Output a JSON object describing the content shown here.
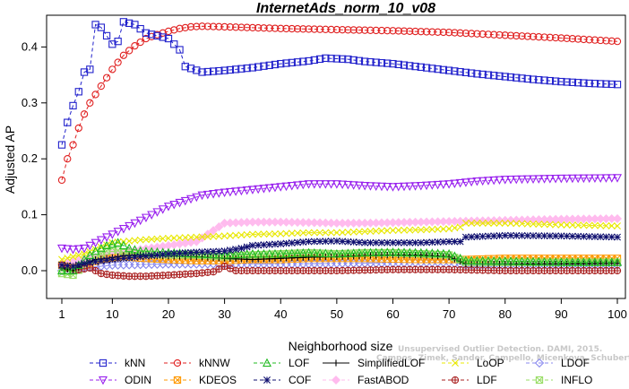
{
  "chart_data": {
    "type": "line",
    "title": "InternetAds_norm_10_v08",
    "xlabel": "Neighborhood size",
    "ylabel": "Adjusted AP",
    "xlim": [
      1,
      100
    ],
    "ylim": [
      -0.045,
      0.45
    ],
    "x_ticks": [
      1,
      10,
      20,
      30,
      40,
      50,
      60,
      70,
      80,
      90,
      100
    ],
    "y_ticks": [
      0.0,
      0.1,
      0.2,
      0.3,
      0.4
    ],
    "y_tick_labels": [
      "0.0",
      "0.1",
      "0.2",
      "0.3",
      "0.4"
    ],
    "legend_position": "bottom",
    "watermark": [
      "Unsupervised Outlier Detection. DAMI, 2015.",
      "Campos, Zimek, Sander, Campello, Micenkova, Schubert, Assent, Houle"
    ],
    "series": [
      {
        "name": "kNN",
        "color": "#2222cc",
        "marker": "square",
        "dashed": true,
        "points": [
          [
            1,
            0.225
          ],
          [
            2,
            0.265
          ],
          [
            3,
            0.295
          ],
          [
            4,
            0.32
          ],
          [
            5,
            0.355
          ],
          [
            6,
            0.36
          ],
          [
            7,
            0.44
          ],
          [
            8,
            0.435
          ],
          [
            9,
            0.42
          ],
          [
            10,
            0.405
          ],
          [
            11,
            0.41
          ],
          [
            12,
            0.445
          ],
          [
            14,
            0.44
          ],
          [
            16,
            0.425
          ],
          [
            18,
            0.42
          ],
          [
            20,
            0.415
          ],
          [
            22,
            0.395
          ],
          [
            23,
            0.365
          ],
          [
            26,
            0.355
          ],
          [
            30,
            0.358
          ],
          [
            35,
            0.363
          ],
          [
            40,
            0.37
          ],
          [
            45,
            0.375
          ],
          [
            48,
            0.38
          ],
          [
            52,
            0.378
          ],
          [
            55,
            0.374
          ],
          [
            60,
            0.37
          ],
          [
            65,
            0.364
          ],
          [
            70,
            0.358
          ],
          [
            75,
            0.352
          ],
          [
            80,
            0.347
          ],
          [
            85,
            0.342
          ],
          [
            90,
            0.338
          ],
          [
            95,
            0.335
          ],
          [
            100,
            0.333
          ]
        ]
      },
      {
        "name": "kNNW",
        "color": "#e02020",
        "marker": "circle",
        "dashed": true,
        "points": [
          [
            1,
            0.162
          ],
          [
            2,
            0.2
          ],
          [
            3,
            0.225
          ],
          [
            4,
            0.255
          ],
          [
            5,
            0.28
          ],
          [
            6,
            0.3
          ],
          [
            8,
            0.33
          ],
          [
            10,
            0.36
          ],
          [
            12,
            0.385
          ],
          [
            14,
            0.402
          ],
          [
            16,
            0.415
          ],
          [
            18,
            0.422
          ],
          [
            20,
            0.428
          ],
          [
            22,
            0.433
          ],
          [
            24,
            0.436
          ],
          [
            26,
            0.437
          ],
          [
            30,
            0.436
          ],
          [
            40,
            0.433
          ],
          [
            50,
            0.431
          ],
          [
            60,
            0.429
          ],
          [
            70,
            0.426
          ],
          [
            80,
            0.421
          ],
          [
            90,
            0.416
          ],
          [
            100,
            0.41
          ]
        ]
      },
      {
        "name": "LOF",
        "color": "#22bb22",
        "marker": "triangle-up",
        "dashed": true,
        "points": [
          [
            1,
            0.0
          ],
          [
            3,
            0.0
          ],
          [
            5,
            0.02
          ],
          [
            7,
            0.035
          ],
          [
            9,
            0.045
          ],
          [
            11,
            0.05
          ],
          [
            13,
            0.04
          ],
          [
            15,
            0.035
          ],
          [
            20,
            0.032
          ],
          [
            25,
            0.03
          ],
          [
            30,
            0.028
          ],
          [
            35,
            0.03
          ],
          [
            40,
            0.03
          ],
          [
            45,
            0.032
          ],
          [
            50,
            0.03
          ],
          [
            55,
            0.032
          ],
          [
            60,
            0.033
          ],
          [
            65,
            0.032
          ],
          [
            70,
            0.03
          ],
          [
            73,
            0.018
          ],
          [
            80,
            0.017
          ],
          [
            90,
            0.015
          ],
          [
            100,
            0.015
          ]
        ]
      },
      {
        "name": "SimplifiedLOF",
        "color": "#000000",
        "marker": "plus",
        "dashed": false,
        "points": [
          [
            1,
            0.005
          ],
          [
            3,
            0.0
          ],
          [
            5,
            0.012
          ],
          [
            7,
            0.02
          ],
          [
            9,
            0.022
          ],
          [
            12,
            0.027
          ],
          [
            15,
            0.028
          ],
          [
            20,
            0.026
          ],
          [
            25,
            0.025
          ],
          [
            30,
            0.022
          ],
          [
            35,
            0.02
          ],
          [
            40,
            0.022
          ],
          [
            45,
            0.024
          ],
          [
            50,
            0.025
          ],
          [
            55,
            0.027
          ],
          [
            60,
            0.028
          ],
          [
            65,
            0.028
          ],
          [
            70,
            0.025
          ],
          [
            73,
            0.012
          ],
          [
            80,
            0.012
          ],
          [
            90,
            0.012
          ],
          [
            100,
            0.013
          ]
        ]
      },
      {
        "name": "LoOP",
        "color": "#e8e800",
        "marker": "x",
        "dashed": true,
        "points": [
          [
            1,
            0.02
          ],
          [
            5,
            0.03
          ],
          [
            10,
            0.05
          ],
          [
            15,
            0.055
          ],
          [
            20,
            0.058
          ],
          [
            25,
            0.06
          ],
          [
            30,
            0.062
          ],
          [
            35,
            0.065
          ],
          [
            40,
            0.066
          ],
          [
            45,
            0.068
          ],
          [
            50,
            0.068
          ],
          [
            55,
            0.07
          ],
          [
            60,
            0.072
          ],
          [
            65,
            0.073
          ],
          [
            70,
            0.075
          ],
          [
            72,
            0.078
          ],
          [
            73,
            0.085
          ],
          [
            80,
            0.085
          ],
          [
            90,
            0.082
          ],
          [
            100,
            0.08
          ]
        ]
      },
      {
        "name": "LDOF",
        "color": "#8888ee",
        "marker": "diamond",
        "dashed": true,
        "points": [
          [
            1,
            0.0
          ],
          [
            5,
            0.005
          ],
          [
            10,
            0.01
          ],
          [
            20,
            0.012
          ],
          [
            30,
            0.012
          ],
          [
            40,
            0.012
          ],
          [
            50,
            0.013
          ],
          [
            60,
            0.014
          ],
          [
            70,
            0.015
          ],
          [
            73,
            0.01
          ],
          [
            80,
            0.01
          ],
          [
            90,
            0.01
          ],
          [
            100,
            0.01
          ]
        ]
      },
      {
        "name": "ODIN",
        "color": "#9922ee",
        "marker": "triangle-down",
        "dashed": true,
        "points": [
          [
            1,
            0.04
          ],
          [
            3,
            0.038
          ],
          [
            5,
            0.04
          ],
          [
            7,
            0.05
          ],
          [
            10,
            0.065
          ],
          [
            13,
            0.08
          ],
          [
            15,
            0.09
          ],
          [
            18,
            0.105
          ],
          [
            20,
            0.115
          ],
          [
            23,
            0.125
          ],
          [
            26,
            0.135
          ],
          [
            30,
            0.14
          ],
          [
            35,
            0.145
          ],
          [
            40,
            0.15
          ],
          [
            45,
            0.155
          ],
          [
            50,
            0.155
          ],
          [
            55,
            0.152
          ],
          [
            60,
            0.15
          ],
          [
            65,
            0.152
          ],
          [
            70,
            0.155
          ],
          [
            75,
            0.16
          ],
          [
            80,
            0.163
          ],
          [
            90,
            0.165
          ],
          [
            100,
            0.166
          ]
        ]
      },
      {
        "name": "KDEOS",
        "color": "#ff9900",
        "marker": "square-x",
        "dashed": true,
        "points": [
          [
            1,
            0.01
          ],
          [
            3,
            0.005
          ],
          [
            5,
            0.01
          ],
          [
            8,
            0.02
          ],
          [
            12,
            0.025
          ],
          [
            16,
            0.022
          ],
          [
            20,
            0.02
          ],
          [
            25,
            0.018
          ],
          [
            30,
            0.018
          ],
          [
            35,
            0.02
          ],
          [
            40,
            0.02
          ],
          [
            45,
            0.022
          ],
          [
            50,
            0.022
          ],
          [
            55,
            0.022
          ],
          [
            60,
            0.021
          ],
          [
            65,
            0.02
          ],
          [
            70,
            0.02
          ],
          [
            73,
            0.02
          ],
          [
            80,
            0.022
          ],
          [
            90,
            0.022
          ],
          [
            100,
            0.022
          ]
        ]
      },
      {
        "name": "COF",
        "color": "#101070",
        "marker": "asterisk",
        "dashed": true,
        "points": [
          [
            1,
            0.01
          ],
          [
            3,
            0.008
          ],
          [
            6,
            0.015
          ],
          [
            10,
            0.02
          ],
          [
            15,
            0.025
          ],
          [
            20,
            0.03
          ],
          [
            25,
            0.033
          ],
          [
            30,
            0.035
          ],
          [
            33,
            0.04
          ],
          [
            35,
            0.045
          ],
          [
            40,
            0.048
          ],
          [
            45,
            0.052
          ],
          [
            50,
            0.053
          ],
          [
            55,
            0.05
          ],
          [
            60,
            0.05
          ],
          [
            65,
            0.05
          ],
          [
            70,
            0.052
          ],
          [
            72,
            0.052
          ],
          [
            73,
            0.06
          ],
          [
            80,
            0.063
          ],
          [
            90,
            0.062
          ],
          [
            100,
            0.06
          ]
        ]
      },
      {
        "name": "FastABOD",
        "color": "#ffbbee",
        "marker": "diamond-filled",
        "dashed": true,
        "points": [
          [
            1,
            0.012
          ],
          [
            5,
            0.02
          ],
          [
            10,
            0.03
          ],
          [
            15,
            0.038
          ],
          [
            20,
            0.045
          ],
          [
            25,
            0.052
          ],
          [
            30,
            0.085
          ],
          [
            35,
            0.087
          ],
          [
            40,
            0.087
          ],
          [
            45,
            0.086
          ],
          [
            50,
            0.085
          ],
          [
            55,
            0.085
          ],
          [
            60,
            0.086
          ],
          [
            65,
            0.087
          ],
          [
            70,
            0.088
          ],
          [
            75,
            0.089
          ],
          [
            80,
            0.09
          ],
          [
            90,
            0.092
          ],
          [
            100,
            0.093
          ]
        ]
      },
      {
        "name": "LDF",
        "color": "#aa2222",
        "marker": "circle-plus",
        "dashed": true,
        "points": [
          [
            1,
            0.01
          ],
          [
            3,
            0.0
          ],
          [
            6,
            0.005
          ],
          [
            8,
            -0.005
          ],
          [
            10,
            -0.008
          ],
          [
            13,
            -0.01
          ],
          [
            16,
            -0.01
          ],
          [
            20,
            -0.008
          ],
          [
            25,
            -0.005
          ],
          [
            28,
            -0.002
          ],
          [
            30,
            0.008
          ],
          [
            32,
            0.0
          ],
          [
            35,
            0.0
          ],
          [
            40,
            0.0
          ],
          [
            50,
            0.0
          ],
          [
            60,
            0.002
          ],
          [
            70,
            0.002
          ],
          [
            80,
            0.0
          ],
          [
            90,
            0.0
          ],
          [
            100,
            0.0
          ]
        ]
      },
      {
        "name": "INFLO",
        "color": "#99dd66",
        "marker": "square-x",
        "dashed": true,
        "points": [
          [
            1,
            -0.005
          ],
          [
            3,
            -0.008
          ],
          [
            5,
            0.01
          ],
          [
            8,
            0.03
          ],
          [
            10,
            0.04
          ],
          [
            12,
            0.032
          ],
          [
            15,
            0.03
          ],
          [
            20,
            0.028
          ],
          [
            25,
            0.028
          ],
          [
            30,
            0.025
          ],
          [
            35,
            0.028
          ],
          [
            40,
            0.03
          ],
          [
            45,
            0.032
          ],
          [
            50,
            0.03
          ],
          [
            55,
            0.032
          ],
          [
            60,
            0.032
          ],
          [
            65,
            0.03
          ],
          [
            70,
            0.028
          ],
          [
            73,
            0.015
          ],
          [
            80,
            0.015
          ],
          [
            90,
            0.015
          ],
          [
            100,
            0.015
          ]
        ]
      }
    ]
  }
}
